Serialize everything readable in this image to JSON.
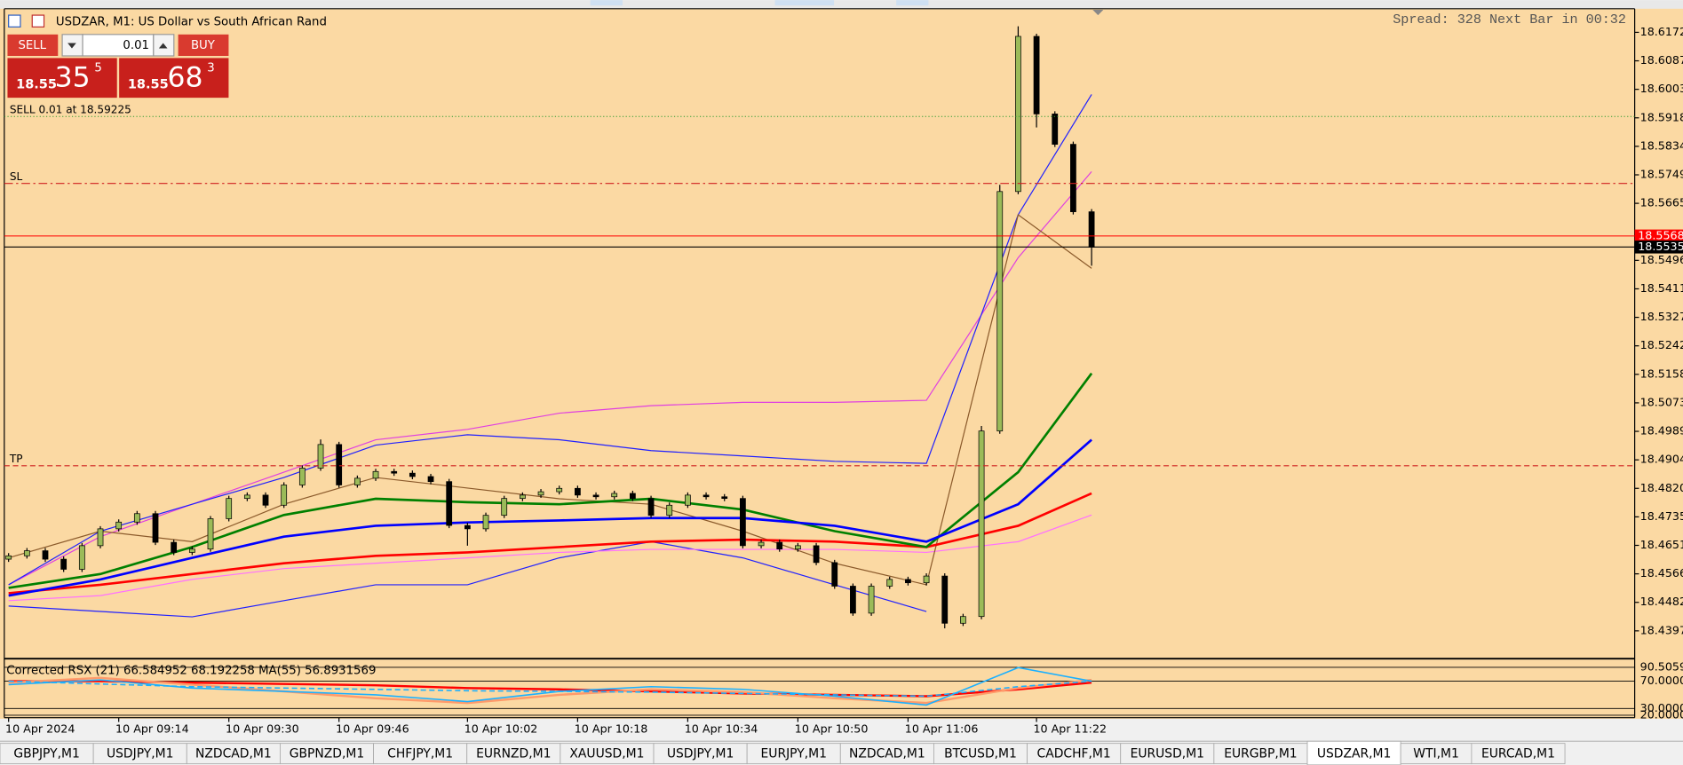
{
  "header": {
    "symbol_label": "USDZAR, M1:  US Dollar vs South African Rand",
    "status": "Spread: 328 Next Bar in 00:32"
  },
  "trade_panel": {
    "sell_label": "SELL",
    "buy_label": "BUY",
    "lot": "0.01",
    "sell_price_prefix": "18.55",
    "sell_price_big": "35",
    "sell_price_sup": "5",
    "buy_price_prefix": "18.55",
    "buy_price_big": "68",
    "buy_price_sup": "3"
  },
  "tabs": {
    "items": [
      "GBPJPY,M1",
      "USDJPY,M1",
      "NZDCAD,M1",
      "GBPNZD,M1",
      "CHFJPY,M1",
      "EURNZD,M1",
      "XAUUSD,M1",
      "USDJPY,M1",
      "EURJPY,M1",
      "NZDCAD,M1",
      "BTCUSD,M1",
      "CADCHF,M1",
      "EURUSD,M1",
      "EURGBP,M1",
      "USDZAR,M1",
      "WTI,M1",
      "EURCAD,M1"
    ],
    "active": 14
  },
  "chart_data": {
    "type": "candlestick",
    "up_color": "#9bbb59",
    "down_color": "#000000",
    "ylim": [
      18.4315,
      18.6242
    ],
    "yticks": [
      {
        "value": 18.6172,
        "label": "18.61720"
      },
      18.60875,
      {
        "value": 18.6003,
        "label": "18.60030"
      },
      18.59185,
      {
        "value": 18.5834,
        "label": "18.58340"
      },
      18.57495,
      {
        "value": 18.5665,
        "label": "18.56650"
      },
      {
        "value": 18.5496,
        "label": "18.54960"
      },
      18.54115,
      {
        "value": 18.5327,
        "label": "18.53270"
      },
      18.52425,
      {
        "value": 18.5158,
        "label": "18.51580"
      },
      18.50735,
      {
        "value": 18.4989,
        "label": "18.49890"
      },
      18.49045,
      {
        "value": 18.482,
        "label": "18.48200"
      },
      18.47355,
      {
        "value": 18.4651,
        "label": "18.46510"
      },
      18.45665,
      {
        "value": 18.4482,
        "label": "18.44820"
      },
      18.43975
    ],
    "x": [
      "10 Apr 2024",
      null,
      null,
      null,
      null,
      null,
      "10 Apr 09:14",
      null,
      null,
      null,
      null,
      null,
      "10 Apr 09:30",
      null,
      null,
      null,
      null,
      null,
      "10 Apr 09:46",
      null,
      null,
      null,
      null,
      null,
      null,
      "10 Apr 10:02",
      null,
      null,
      null,
      null,
      null,
      "10 Apr 10:18",
      null,
      null,
      null,
      null,
      null,
      "10 Apr 10:34",
      null,
      null,
      null,
      null,
      null,
      "10 Apr 10:50",
      null,
      null,
      null,
      null,
      null,
      "10 Apr 11:06",
      null,
      null,
      null,
      null,
      null,
      null,
      "10 Apr 11:22",
      null,
      null,
      null
    ],
    "open": [
      18.461,
      18.462,
      18.4635,
      18.461,
      18.458,
      18.465,
      18.47,
      18.472,
      18.4745,
      18.466,
      18.463,
      18.464,
      18.473,
      18.479,
      18.48,
      18.477,
      18.483,
      18.488,
      18.495,
      18.483,
      18.485,
      18.487,
      18.4865,
      18.4855,
      18.484,
      18.471,
      18.47,
      18.474,
      18.479,
      18.48,
      18.481,
      18.482,
      18.48,
      18.4795,
      18.4805,
      18.479,
      18.474,
      18.477,
      18.48,
      18.4795,
      18.479,
      18.465,
      18.466,
      18.464,
      18.465,
      18.46,
      18.453,
      18.445,
      18.453,
      18.455,
      18.454,
      18.456,
      18.442,
      18.444,
      18.499,
      18.57,
      18.616,
      18.593,
      18.584,
      18.564
    ],
    "high": [
      18.4628,
      18.4643,
      18.4643,
      18.4618,
      18.4658,
      18.4708,
      18.4728,
      18.4753,
      18.4753,
      18.4668,
      18.4648,
      18.4738,
      18.4798,
      18.4808,
      18.4808,
      18.4838,
      18.4888,
      18.4965,
      18.4958,
      18.4858,
      18.4878,
      18.4878,
      18.4873,
      18.4863,
      18.4848,
      18.4718,
      18.4748,
      18.4798,
      18.4808,
      18.4818,
      18.4828,
      18.4828,
      18.4808,
      18.4813,
      18.4813,
      18.4798,
      18.4778,
      18.4808,
      18.4808,
      18.4803,
      18.4798,
      18.4668,
      18.4668,
      18.4658,
      18.4658,
      18.4608,
      18.4538,
      18.4538,
      18.4558,
      18.4558,
      18.4568,
      18.4568,
      18.4448,
      18.5005,
      18.572,
      18.619,
      18.6168,
      18.5938,
      18.5848,
      18.5648
    ],
    "low": [
      18.4602,
      18.4612,
      18.4602,
      18.4572,
      18.4572,
      18.4642,
      18.4692,
      18.4712,
      18.4652,
      18.4622,
      18.4622,
      18.4632,
      18.4722,
      18.4782,
      18.4762,
      18.4762,
      18.4822,
      18.4872,
      18.4822,
      18.4822,
      18.4842,
      18.4857,
      18.4847,
      18.4832,
      18.4702,
      18.465,
      18.4692,
      18.4732,
      18.4782,
      18.4792,
      18.4802,
      18.4792,
      18.4787,
      18.4787,
      18.4782,
      18.4732,
      18.4732,
      18.4762,
      18.4787,
      18.4782,
      18.4642,
      18.4642,
      18.4632,
      18.4632,
      18.4592,
      18.4522,
      18.4442,
      18.4442,
      18.4522,
      18.4532,
      18.4532,
      18.4405,
      18.4412,
      18.4432,
      18.4982,
      18.5692,
      18.589,
      18.5832,
      18.5632,
      18.548
    ],
    "close": [
      18.462,
      18.4635,
      18.461,
      18.458,
      18.465,
      18.47,
      18.472,
      18.4745,
      18.466,
      18.463,
      18.464,
      18.473,
      18.479,
      18.48,
      18.477,
      18.483,
      18.488,
      18.495,
      18.483,
      18.485,
      18.487,
      18.4865,
      18.4855,
      18.484,
      18.471,
      18.47,
      18.474,
      18.479,
      18.48,
      18.481,
      18.482,
      18.48,
      18.4795,
      18.4805,
      18.479,
      18.474,
      18.477,
      18.48,
      18.4795,
      18.479,
      18.465,
      18.466,
      18.464,
      18.465,
      18.46,
      18.453,
      18.445,
      18.453,
      18.455,
      18.454,
      18.456,
      18.442,
      18.444,
      18.499,
      18.57,
      18.616,
      18.593,
      18.584,
      18.564,
      18.5535
    ],
    "overlay_x": [
      0,
      5,
      10,
      15,
      20,
      25,
      30,
      35,
      40,
      45,
      50,
      55,
      59
    ],
    "overlays": [
      {
        "color": "#e040e0",
        "thick": false,
        "values": [
          18.4534,
          18.4677,
          18.4773,
          18.4868,
          18.4964,
          18.4995,
          18.5043,
          18.5065,
          18.5075,
          18.5075,
          18.5081,
          18.5504,
          18.5759
        ]
      },
      {
        "color": "#2020ff",
        "thick": false,
        "values": [
          18.4534,
          18.4693,
          18.4773,
          18.4852,
          18.4948,
          18.4979,
          18.4964,
          18.4932,
          18.4916,
          18.49,
          18.4894,
          18.5631,
          18.5988
        ]
      },
      {
        "color": "#2020ff",
        "thick": false,
        "values": [
          18.4471,
          18.4455,
          18.4439,
          18.4487,
          18.4534,
          18.4534,
          18.4614,
          18.4662,
          18.4614,
          18.4534,
          18.4455,
          null,
          null
        ]
      },
      {
        "color": "#ff70ff",
        "thick": false,
        "values": [
          18.4487,
          18.4502,
          18.455,
          18.4582,
          18.4598,
          18.4614,
          18.463,
          18.4639,
          18.4639,
          18.4639,
          18.463,
          18.4662,
          18.4741
        ]
      },
      {
        "color": "#8b5a2b",
        "thick": false,
        "values": [
          18.4614,
          18.4693,
          18.4662,
          18.4773,
          18.4852,
          18.4821,
          18.4789,
          18.4773,
          18.4693,
          18.4598,
          18.4534,
          18.5631,
          18.5472
        ]
      },
      {
        "color": "#ff0000",
        "thick": true,
        "values": [
          18.4509,
          18.4534,
          18.4566,
          18.4598,
          18.462,
          18.463,
          18.4646,
          18.4662,
          18.4668,
          18.4662,
          18.4646,
          18.4709,
          18.4805
        ]
      },
      {
        "color": "#008000",
        "thick": true,
        "values": [
          18.4525,
          18.4566,
          18.4646,
          18.4741,
          18.4789,
          18.4779,
          18.4773,
          18.4789,
          18.4757,
          18.4693,
          18.4646,
          18.4868,
          18.5161
        ]
      },
      {
        "color": "#0000ff",
        "thick": true,
        "values": [
          18.4502,
          18.455,
          18.4614,
          18.4677,
          18.4709,
          18.4719,
          18.4725,
          18.4732,
          18.4732,
          18.4709,
          18.4662,
          18.4773,
          18.4964
        ]
      }
    ],
    "levels": [
      {
        "label": "SELL 0.01 at 18.59225",
        "value": 18.59225,
        "color": "#2e9b2e",
        "dash": "dotted",
        "tag": false
      },
      {
        "label": "SL",
        "value": 18.5724,
        "color": "#d02020",
        "dash": "dashdot",
        "tag": false
      },
      {
        "label": "TP",
        "value": 18.4887,
        "color": "#d02020",
        "dash": "dashed",
        "tag": false
      },
      {
        "label": "18.55683",
        "value": 18.55683,
        "color": "#ff0000",
        "dash": "solid",
        "tag": true
      },
      {
        "label": "18.55355",
        "value": 18.55355,
        "color": "#000000",
        "dash": "solid",
        "tag": true
      }
    ],
    "sub": {
      "label": "Corrected RSX (21) 66.584952 68.192258 MA(55) 56.8931569",
      "ylim": [
        18,
        100
      ],
      "yticks": [
        {
          "value": 90.5059,
          "label": "90.50590"
        },
        {
          "value": 70,
          "label": "70.00000"
        },
        {
          "value": 30,
          "label": "30.00000"
        },
        {
          "value": 20,
          "label": "20.00000"
        }
      ],
      "series": [
        {
          "color": "#ff0000",
          "dash": "solid",
          "thick": true,
          "values": [
            70,
            70,
            68,
            66,
            64,
            60,
            58,
            55,
            52,
            50,
            48,
            58,
            68
          ]
        },
        {
          "color": "#ff9a6a",
          "dash": "solid",
          "thick": true,
          "values": [
            68,
            75,
            65,
            55,
            45,
            38,
            50,
            58,
            54,
            45,
            38,
            60,
            72
          ]
        },
        {
          "color": "#1ab0ff",
          "dash": "solid",
          "thick": false,
          "values": [
            65,
            72,
            60,
            55,
            50,
            40,
            55,
            62,
            58,
            48,
            35,
            90,
            70
          ]
        },
        {
          "color": "#1ab0ff",
          "dash": "dashed",
          "thick": false,
          "values": [
            70,
            66,
            62,
            60,
            58,
            56,
            55,
            54,
            52,
            50,
            48,
            62,
            70
          ]
        }
      ]
    }
  }
}
